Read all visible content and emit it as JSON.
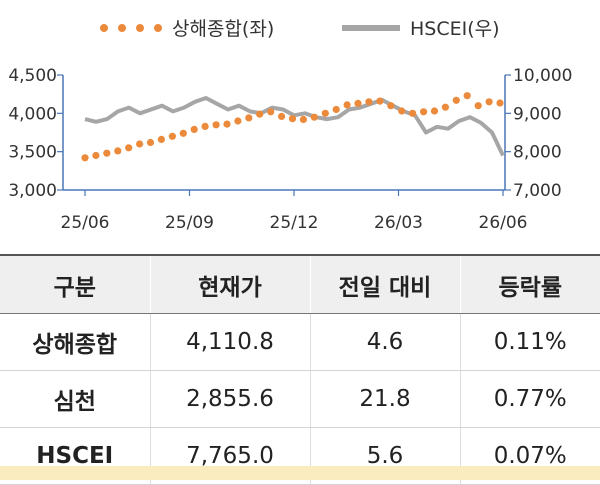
{
  "chart_data": {
    "type": "line",
    "series": [
      {
        "name": "상해종합(좌)",
        "axis": "left",
        "style": "dotted",
        "color": "#ec8a3c",
        "values": [
          3420,
          3450,
          3480,
          3510,
          3550,
          3600,
          3620,
          3660,
          3700,
          3740,
          3790,
          3830,
          3850,
          3860,
          3900,
          3940,
          3990,
          4020,
          3960,
          3930,
          3920,
          3950,
          4000,
          4050,
          4110,
          4130,
          4150,
          4160,
          4100,
          4030,
          4000,
          4020,
          4030,
          4080,
          4170,
          4230,
          4100,
          4150,
          4135
        ]
      },
      {
        "name": "HSCEI(우)",
        "axis": "right",
        "style": "line",
        "color": "#a6a6a6",
        "values": [
          8850,
          8780,
          8850,
          9050,
          9150,
          9000,
          9100,
          9200,
          9050,
          9150,
          9300,
          9400,
          9250,
          9100,
          9200,
          9050,
          9000,
          9150,
          9100,
          8950,
          9000,
          8900,
          8850,
          8900,
          9100,
          9150,
          9250,
          9350,
          9200,
          9050,
          8950,
          8500,
          8650,
          8600,
          8800,
          8900,
          8750,
          8500,
          7900
        ]
      }
    ],
    "x_ticks": [
      "25/06",
      "25/09",
      "25/12",
      "26/03",
      "26/06"
    ],
    "y_left": {
      "min": 3000,
      "max": 4500,
      "ticks": [
        "3,000",
        "3,500",
        "4,000",
        "4,500"
      ]
    },
    "y_right": {
      "min": 7000,
      "max": 10000,
      "ticks": [
        "7,000",
        "8,000",
        "9,000",
        "10,000"
      ]
    },
    "legend_position": "top"
  },
  "table": {
    "headers": [
      "구분",
      "현재가",
      "전일 대비",
      "등락률"
    ],
    "rows": [
      [
        "상해종합",
        "4,110.8",
        "4.6",
        "0.11%"
      ],
      [
        "심천",
        "2,855.6",
        "21.8",
        "0.77%"
      ],
      [
        "HSCEI",
        "7,765.0",
        "5.6",
        "0.07%"
      ]
    ]
  }
}
